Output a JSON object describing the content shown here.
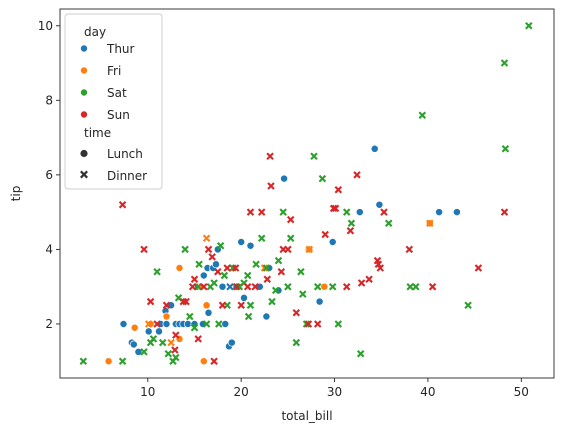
{
  "chart_data": {
    "type": "scatter",
    "title": "",
    "xlabel": "total_bill",
    "ylabel": "tip",
    "xlim": [
      0.6,
      53.5
    ],
    "ylim": [
      0.55,
      10.45
    ],
    "xticks": [
      10,
      20,
      30,
      40,
      50
    ],
    "yticks": [
      2,
      4,
      6,
      8,
      10
    ],
    "grid": false,
    "legend_placement": "top-left",
    "legend": {
      "hue_title": "day",
      "style_title": "time",
      "hue_entries": [
        {
          "label": "Thur",
          "color": "#1f77b4"
        },
        {
          "label": "Fri",
          "color": "#ff7f0e"
        },
        {
          "label": "Sat",
          "color": "#2ca02c"
        },
        {
          "label": "Sun",
          "color": "#d62728"
        }
      ],
      "style_entries": [
        {
          "label": "Lunch",
          "marker": "circle"
        },
        {
          "label": "Dinner",
          "marker": "x"
        }
      ]
    },
    "colors": {
      "Thur": "#1f77b4",
      "Fri": "#ff7f0e",
      "Sat": "#2ca02c",
      "Sun": "#d62728"
    },
    "series": [
      {
        "day": "Thur",
        "time": "Lunch",
        "points": [
          [
            7.4,
            2.0
          ],
          [
            8.3,
            1.5
          ],
          [
            8.5,
            1.45
          ],
          [
            9.0,
            1.25
          ],
          [
            10.1,
            1.8
          ],
          [
            10.3,
            2.0
          ],
          [
            11.2,
            1.8
          ],
          [
            11.4,
            2.0
          ],
          [
            11.9,
            2.35
          ],
          [
            12.0,
            2.0
          ],
          [
            12.5,
            2.5
          ],
          [
            13.0,
            2.0
          ],
          [
            13.4,
            2.0
          ],
          [
            13.8,
            2.0
          ],
          [
            14.3,
            2.0
          ],
          [
            15.0,
            2.0
          ],
          [
            15.4,
            3.0
          ],
          [
            15.9,
            2.0
          ],
          [
            16.5,
            2.3
          ],
          [
            16.4,
            3.5
          ],
          [
            17.0,
            3.5
          ],
          [
            17.3,
            3.6
          ],
          [
            17.5,
            4.0
          ],
          [
            18.0,
            3.0
          ],
          [
            18.3,
            2.0
          ],
          [
            18.7,
            1.4
          ],
          [
            19.0,
            1.5
          ],
          [
            19.5,
            3.0
          ],
          [
            20.0,
            4.2
          ],
          [
            20.3,
            2.7
          ],
          [
            21.0,
            4.1
          ],
          [
            22.0,
            3.0
          ],
          [
            22.7,
            2.2
          ],
          [
            23.0,
            3.5
          ],
          [
            24.0,
            2.9
          ],
          [
            24.6,
            5.9
          ],
          [
            27.2,
            4.0
          ],
          [
            28.4,
            2.6
          ],
          [
            29.8,
            4.2
          ],
          [
            32.7,
            5.0
          ],
          [
            34.3,
            6.7
          ],
          [
            34.8,
            5.2
          ],
          [
            41.2,
            5.0
          ],
          [
            43.1,
            5.0
          ],
          [
            16.0,
            3.3
          ]
        ]
      },
      {
        "day": "Fri",
        "time": "Lunch",
        "points": [
          [
            8.6,
            1.9
          ],
          [
            10.3,
            2.0
          ],
          [
            12.0,
            2.2
          ],
          [
            13.4,
            1.6
          ],
          [
            13.4,
            3.5
          ],
          [
            16.3,
            2.5
          ],
          [
            16.0,
            1.0
          ],
          [
            27.3,
            4.0
          ],
          [
            28.9,
            3.0
          ],
          [
            40.2,
            4.7
          ],
          [
            5.8,
            1.0
          ],
          [
            15.7,
            3.0
          ]
        ]
      },
      {
        "day": "Thur",
        "time": "Dinner",
        "points": [
          [
            18.8,
            3.0
          ]
        ]
      },
      {
        "day": "Fri",
        "time": "Dinner",
        "points": [
          [
            10.1,
            2.0
          ],
          [
            12.5,
            1.5
          ],
          [
            16.3,
            4.3
          ],
          [
            22.5,
            3.5
          ],
          [
            27.3,
            4.0
          ],
          [
            40.2,
            4.7
          ]
        ]
      },
      {
        "day": "Sat",
        "time": "Dinner",
        "points": [
          [
            3.1,
            1.0
          ],
          [
            7.3,
            1.0
          ],
          [
            9.6,
            1.25
          ],
          [
            10.3,
            1.5
          ],
          [
            10.6,
            1.6
          ],
          [
            11.0,
            3.4
          ],
          [
            11.6,
            1.5
          ],
          [
            12.2,
            1.2
          ],
          [
            12.7,
            1.0
          ],
          [
            13.0,
            1.1
          ],
          [
            13.3,
            2.7
          ],
          [
            14.0,
            4.0
          ],
          [
            14.5,
            2.2
          ],
          [
            15.0,
            1.9
          ],
          [
            15.4,
            3.0
          ],
          [
            15.5,
            3.6
          ],
          [
            16.3,
            2.0
          ],
          [
            16.7,
            3.0
          ],
          [
            17.1,
            3.1
          ],
          [
            17.8,
            4.1
          ],
          [
            18.2,
            3.3
          ],
          [
            18.5,
            2.5
          ],
          [
            19.1,
            3.5
          ],
          [
            19.8,
            3.0
          ],
          [
            20.3,
            3.1
          ],
          [
            20.7,
            3.3
          ],
          [
            21.0,
            2.5
          ],
          [
            21.6,
            3.6
          ],
          [
            22.2,
            4.3
          ],
          [
            22.7,
            3.5
          ],
          [
            23.3,
            2.6
          ],
          [
            24.0,
            3.7
          ],
          [
            24.5,
            5.0
          ],
          [
            25.0,
            3.0
          ],
          [
            25.3,
            4.3
          ],
          [
            25.9,
            1.5
          ],
          [
            26.4,
            3.4
          ],
          [
            27.0,
            2.0
          ],
          [
            27.8,
            6.5
          ],
          [
            28.2,
            3.0
          ],
          [
            28.7,
            5.9
          ],
          [
            29.8,
            3.0
          ],
          [
            31.3,
            5.0
          ],
          [
            31.8,
            4.7
          ],
          [
            32.8,
            1.2
          ],
          [
            35.8,
            4.7
          ],
          [
            38.1,
            3.0
          ],
          [
            38.7,
            3.0
          ],
          [
            39.4,
            7.6
          ],
          [
            44.3,
            2.5
          ],
          [
            48.2,
            9.0
          ],
          [
            48.3,
            6.7
          ],
          [
            50.8,
            10.0
          ],
          [
            17.6,
            2.0
          ],
          [
            20.8,
            2.2
          ],
          [
            23.7,
            2.9
          ],
          [
            26.6,
            2.8
          ],
          [
            30.4,
            2.0
          ]
        ]
      },
      {
        "day": "Sun",
        "time": "Dinner",
        "points": [
          [
            7.3,
            5.2
          ],
          [
            9.6,
            4.0
          ],
          [
            10.3,
            2.6
          ],
          [
            11.0,
            2.0
          ],
          [
            12.0,
            2.5
          ],
          [
            13.0,
            1.7
          ],
          [
            13.8,
            2.6
          ],
          [
            14.8,
            3.0
          ],
          [
            15.0,
            3.2
          ],
          [
            15.4,
            1.6
          ],
          [
            16.0,
            3.0
          ],
          [
            16.5,
            4.0
          ],
          [
            17.1,
            1.0
          ],
          [
            17.5,
            3.4
          ],
          [
            18.0,
            2.5
          ],
          [
            18.5,
            3.5
          ],
          [
            19.4,
            3.5
          ],
          [
            20.0,
            2.5
          ],
          [
            20.7,
            3.0
          ],
          [
            21.0,
            5.0
          ],
          [
            21.5,
            3.0
          ],
          [
            22.2,
            5.0
          ],
          [
            22.8,
            3.2
          ],
          [
            23.1,
            6.5
          ],
          [
            23.2,
            5.7
          ],
          [
            24.3,
            3.4
          ],
          [
            25.0,
            4.0
          ],
          [
            25.3,
            4.8
          ],
          [
            25.9,
            2.3
          ],
          [
            27.2,
            2.0
          ],
          [
            28.2,
            2.0
          ],
          [
            29.0,
            4.4
          ],
          [
            29.9,
            5.1
          ],
          [
            30.4,
            5.6
          ],
          [
            31.3,
            3.0
          ],
          [
            31.7,
            4.5
          ],
          [
            32.4,
            6.0
          ],
          [
            32.9,
            3.1
          ],
          [
            33.7,
            3.2
          ],
          [
            34.6,
            3.7
          ],
          [
            34.9,
            3.5
          ],
          [
            35.3,
            5.0
          ],
          [
            38.0,
            4.0
          ],
          [
            40.5,
            3.0
          ],
          [
            45.4,
            3.5
          ],
          [
            48.2,
            5.0
          ],
          [
            30.1,
            5.1
          ],
          [
            34.7,
            3.6
          ],
          [
            16.9,
            3.8
          ],
          [
            14.1,
            2.6
          ],
          [
            24.5,
            4.0
          ],
          [
            19.5,
            3.0
          ],
          [
            12.9,
            1.3
          ]
        ]
      }
    ]
  }
}
